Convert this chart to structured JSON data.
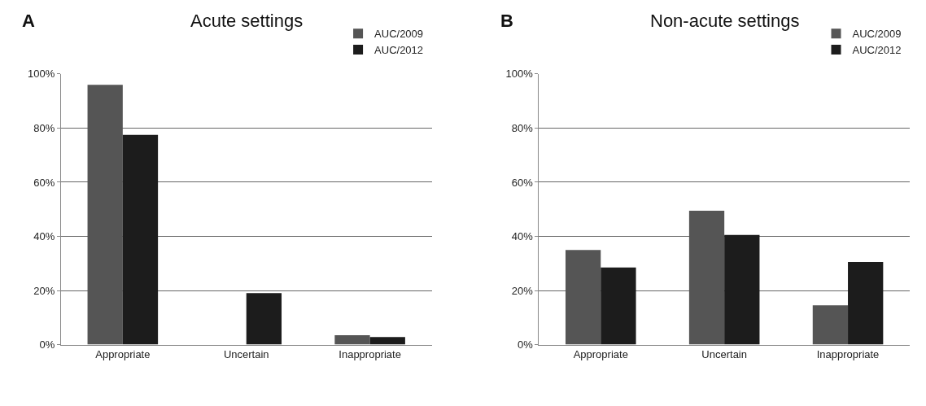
{
  "chart_data": [
    {
      "type": "bar",
      "title": "Acute settings",
      "annotations": [
        "A"
      ],
      "categories": [
        "Appropriate",
        "Uncertain",
        "Inappropriate"
      ],
      "series": [
        {
          "name": "AUC/2009",
          "color": "#555555",
          "values": [
            96,
            0,
            3.5
          ]
        },
        {
          "name": "AUC/2012",
          "color": "#1c1c1c",
          "values": [
            77.5,
            19,
            2.8
          ]
        }
      ],
      "ylim": [
        0,
        100
      ],
      "yticks": [
        {
          "value": 0,
          "label": "0%"
        },
        {
          "value": 20,
          "label": "20%"
        },
        {
          "value": 40,
          "label": "40%"
        },
        {
          "value": 60,
          "label": "60%"
        },
        {
          "value": 80,
          "label": "80%"
        },
        {
          "value": 100,
          "label": "100%"
        }
      ],
      "grid": "y",
      "legend": "top right"
    },
    {
      "type": "bar",
      "title": "Non-acute settings",
      "annotations": [
        "B"
      ],
      "categories": [
        "Appropriate",
        "Uncertain",
        "Inappropriate"
      ],
      "series": [
        {
          "name": "AUC/2009",
          "color": "#555555",
          "values": [
            35,
            49.5,
            14.5
          ]
        },
        {
          "name": "AUC/2012",
          "color": "#1c1c1c",
          "values": [
            28.5,
            40.5,
            30.5
          ]
        }
      ],
      "ylim": [
        0,
        100
      ],
      "yticks": [
        {
          "value": 0,
          "label": "0%"
        },
        {
          "value": 20,
          "label": "20%"
        },
        {
          "value": 40,
          "label": "40%"
        },
        {
          "value": 60,
          "label": "60%"
        },
        {
          "value": 80,
          "label": "80%"
        },
        {
          "value": 100,
          "label": "100%"
        }
      ],
      "grid": "y",
      "legend": "top right"
    }
  ]
}
